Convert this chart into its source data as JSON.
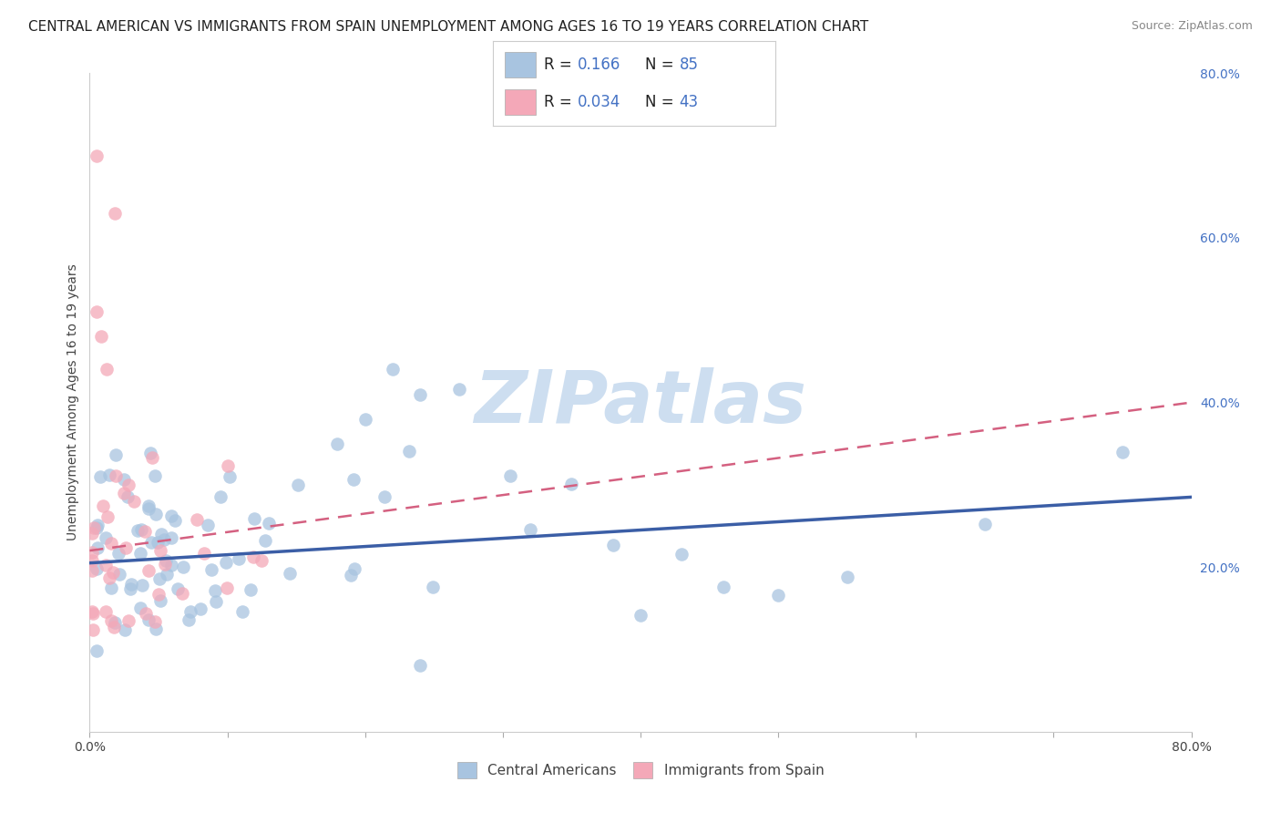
{
  "title": "CENTRAL AMERICAN VS IMMIGRANTS FROM SPAIN UNEMPLOYMENT AMONG AGES 16 TO 19 YEARS CORRELATION CHART",
  "source": "Source: ZipAtlas.com",
  "ylabel": "Unemployment Among Ages 16 to 19 years",
  "xlim": [
    0.0,
    0.8
  ],
  "ylim": [
    0.0,
    0.8
  ],
  "xtick_positions": [
    0.0,
    0.1,
    0.2,
    0.3,
    0.4,
    0.5,
    0.6,
    0.7,
    0.8
  ],
  "xticklabels": [
    "0.0%",
    "",
    "",
    "",
    "",
    "",
    "",
    "",
    "80.0%"
  ],
  "ytick_right_labels": [
    "80.0%",
    "60.0%",
    "40.0%",
    "20.0%",
    ""
  ],
  "ytick_right_positions": [
    0.8,
    0.6,
    0.4,
    0.2,
    0.0
  ],
  "blue_R": "0.166",
  "blue_N": "85",
  "pink_R": "0.034",
  "pink_N": "43",
  "blue_color": "#a8c4e0",
  "pink_color": "#f4a8b8",
  "blue_line_color": "#3b5ea6",
  "pink_line_color": "#d46080",
  "blue_line_start_y": 0.205,
  "blue_line_end_y": 0.285,
  "pink_line_start_y": 0.22,
  "pink_line_end_y": 0.4,
  "background_color": "#ffffff",
  "grid_color": "#cccccc",
  "title_fontsize": 11,
  "label_fontsize": 10,
  "tick_fontsize": 10,
  "right_tick_color": "#4472c4",
  "legend_blue_color": "#4472c4",
  "watermark_color": "#c5d9ee",
  "watermark_text": "ZIPatlas"
}
